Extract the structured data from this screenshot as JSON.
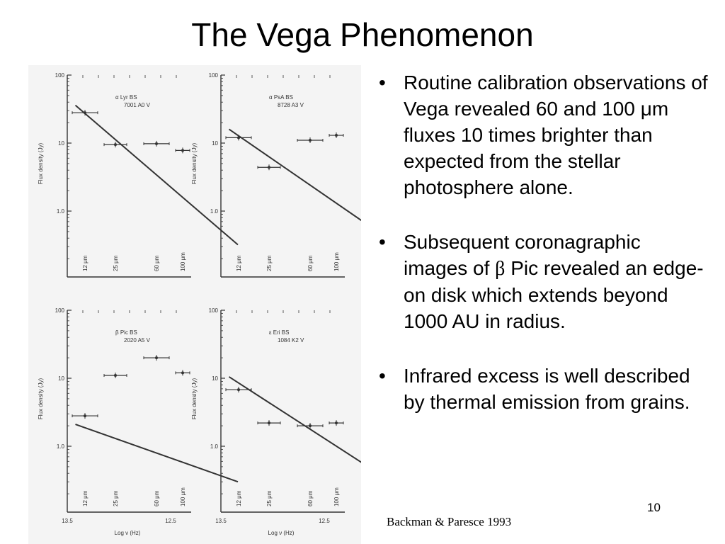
{
  "slide": {
    "title": "The Vega Phenomenon",
    "slide_number": "10",
    "credit": "Backman & Paresce 1993"
  },
  "bullets": [
    {
      "text": "Routine calibration observations of Vega revealed 60 and 100 μm fluxes 10 times brighter than expected from the stellar photosphere alone."
    },
    {
      "pre": "Subsequent coronagraphic images of ",
      "symbol": "β",
      "post": " Pic revealed an edge-on disk which extends beyond 1000 AU in radius."
    },
    {
      "text": "Infrared excess is well described by thermal emission from grains."
    }
  ],
  "figure": {
    "ylabel": "Flux density (Jy)",
    "xlabel": "Log ν (Hz)",
    "y_ticks": [
      "100",
      "10",
      "1.0"
    ],
    "x_ticks": [
      "13.5",
      "12.5"
    ],
    "band_labels": [
      "12 μm",
      "25 μm",
      "60 μm",
      "100 μm"
    ]
  },
  "chart_data": [
    {
      "type": "scatter",
      "title": "α Lyr BS 7001 A0 V",
      "scale": "log-y",
      "ylim": [
        0.5,
        100
      ],
      "points": [
        {
          "band": "12 μm",
          "y": 28
        },
        {
          "band": "25 μm",
          "y": 9.5
        },
        {
          "band": "60 μm",
          "y": 9.8
        },
        {
          "band": "100 μm",
          "y": 7.8
        }
      ],
      "photosphere": [
        {
          "band_x": 11.5,
          "y": 36
        },
        {
          "band_x": 241,
          "y": 0.32
        }
      ]
    },
    {
      "type": "scatter",
      "title": "α PsA BS 8728 A3 V",
      "scale": "log-y",
      "ylim": [
        0.5,
        100
      ],
      "points": [
        {
          "band": "12 μm",
          "y": 12
        },
        {
          "band": "25 μm",
          "y": 4.4
        },
        {
          "band": "60 μm",
          "y": 11
        },
        {
          "band": "100 μm",
          "y": 13
        }
      ],
      "photosphere": [
        {
          "band_x": 11.5,
          "y": 16
        },
        {
          "band_x": 241,
          "y": 0.36
        }
      ]
    },
    {
      "type": "scatter",
      "title": "β Pic BS 2020 A5 V",
      "scale": "log-y",
      "ylim": [
        0.5,
        100
      ],
      "points": [
        {
          "band": "12 μm",
          "y": 2.8
        },
        {
          "band": "25 μm",
          "y": 11
        },
        {
          "band": "60 μm",
          "y": 20
        },
        {
          "band": "100 μm",
          "y": 12
        }
      ],
      "photosphere": [
        {
          "band_x": 11.5,
          "y": 2.1
        },
        {
          "band_x": 241,
          "y": 0.3
        }
      ]
    },
    {
      "type": "scatter",
      "title": "ε Eri BS 1084 K2 V",
      "scale": "log-y",
      "ylim": [
        0.5,
        100
      ],
      "points": [
        {
          "band": "12 μm",
          "y": 6.8
        },
        {
          "band": "25 μm",
          "y": 2.2
        },
        {
          "band": "60 μm",
          "y": 2.0
        },
        {
          "band": "100 μm",
          "y": 2.2
        }
      ],
      "photosphere": [
        {
          "band_x": 11.5,
          "y": 10.5
        },
        {
          "band_x": 241,
          "y": 0.3
        }
      ]
    }
  ],
  "colors": {
    "background": "#ffffff",
    "figure_bg": "#f4f4f4",
    "ink": "#333333"
  }
}
